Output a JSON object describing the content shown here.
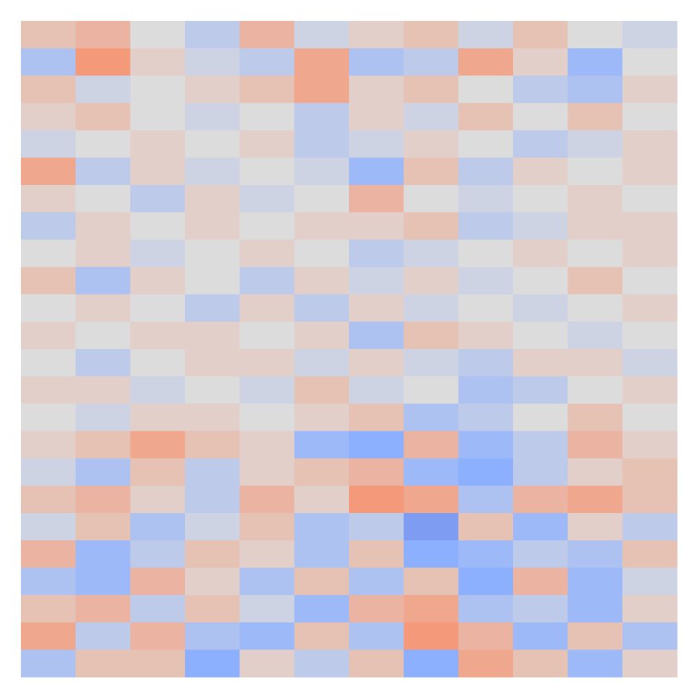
{
  "chart_data": {
    "type": "heatmap",
    "colormap": "coolwarm",
    "vlim": [
      -1,
      1
    ],
    "z": [
      [
        0.2,
        0.3,
        0,
        -0.2,
        0.3,
        -0.1,
        0.1,
        0.2,
        -0.1,
        0.2,
        0,
        -0.1
      ],
      [
        -0.3,
        0.5,
        0.1,
        -0.1,
        -0.2,
        0.4,
        -0.3,
        -0.2,
        0.4,
        0.1,
        -0.4,
        0
      ],
      [
        0.2,
        -0.1,
        0,
        0.1,
        0.2,
        0.4,
        0.1,
        0.2,
        0,
        -0.2,
        -0.3,
        0.1
      ],
      [
        0.1,
        0.2,
        0,
        -0.1,
        0,
        -0.2,
        0.1,
        -0.1,
        0.2,
        0,
        0.2,
        0
      ],
      [
        -0.1,
        0,
        0.1,
        0,
        0.1,
        -0.2,
        -0.1,
        0.1,
        0,
        -0.2,
        -0.1,
        0.1
      ],
      [
        0.4,
        -0.2,
        0.1,
        -0.1,
        0,
        -0.1,
        -0.4,
        0.2,
        -0.2,
        0.1,
        0,
        0.1
      ],
      [
        0.1,
        0,
        -0.2,
        0.1,
        -0.1,
        0,
        0.3,
        0,
        -0.1,
        0,
        0.1,
        0
      ],
      [
        -0.2,
        0.1,
        0,
        0.1,
        0,
        0.1,
        0.1,
        0.2,
        -0.2,
        -0.1,
        0.1,
        0.1
      ],
      [
        0,
        0.1,
        -0.1,
        0,
        0.1,
        0,
        -0.2,
        -0.1,
        0,
        0.1,
        0,
        0.1
      ],
      [
        0.2,
        -0.3,
        0.1,
        0,
        -0.2,
        0.1,
        -0.1,
        0.1,
        -0.1,
        0,
        0.2,
        0
      ],
      [
        0,
        0.1,
        0,
        -0.2,
        0.1,
        -0.2,
        0.1,
        -0.1,
        0,
        -0.1,
        0,
        0.1
      ],
      [
        0.1,
        0,
        0.1,
        0.1,
        0,
        0.1,
        -0.3,
        0.2,
        0.1,
        0,
        -0.1,
        0
      ],
      [
        0,
        -0.2,
        0,
        0.1,
        0.1,
        -0.1,
        0.1,
        -0.1,
        -0.2,
        0.1,
        0.1,
        -0.1
      ],
      [
        0.1,
        0.1,
        -0.1,
        0,
        -0.1,
        0.2,
        -0.1,
        0,
        -0.3,
        -0.2,
        0,
        0.1
      ],
      [
        0,
        -0.1,
        0.1,
        0.1,
        0,
        0.1,
        0.2,
        -0.3,
        -0.2,
        0,
        0.2,
        0
      ],
      [
        0.1,
        0.2,
        0.4,
        0.2,
        0.1,
        -0.4,
        -0.5,
        0.3,
        -0.4,
        -0.2,
        0.3,
        0.1
      ],
      [
        -0.1,
        -0.3,
        0.2,
        -0.2,
        0.1,
        0.2,
        0.3,
        -0.4,
        -0.5,
        -0.2,
        0.1,
        0.2
      ],
      [
        0.2,
        0.3,
        0.1,
        -0.2,
        0.3,
        0.1,
        0.5,
        0.4,
        -0.3,
        0.3,
        0.4,
        0.2
      ],
      [
        -0.1,
        0.2,
        -0.3,
        -0.1,
        0.2,
        -0.3,
        -0.2,
        -0.6,
        0.2,
        -0.4,
        0.1,
        -0.2
      ],
      [
        0.3,
        -0.4,
        -0.2,
        0.2,
        0.1,
        -0.3,
        0.2,
        -0.5,
        -0.4,
        -0.2,
        -0.3,
        0.2
      ],
      [
        -0.3,
        -0.4,
        0.3,
        0.1,
        -0.3,
        0.2,
        -0.3,
        0.2,
        -0.5,
        0.3,
        -0.4,
        -0.1
      ],
      [
        0.2,
        0.3,
        -0.2,
        0.2,
        -0.1,
        -0.4,
        0.3,
        0.4,
        -0.3,
        -0.2,
        -0.4,
        0.1
      ],
      [
        0.4,
        -0.2,
        0.3,
        -0.3,
        -0.4,
        0.2,
        -0.3,
        0.5,
        0.3,
        -0.4,
        0.2,
        -0.3
      ],
      [
        -0.3,
        0.2,
        0.2,
        -0.5,
        0.1,
        -0.2,
        0.2,
        -0.5,
        0.4,
        0.2,
        -0.4,
        0.1
      ]
    ]
  }
}
